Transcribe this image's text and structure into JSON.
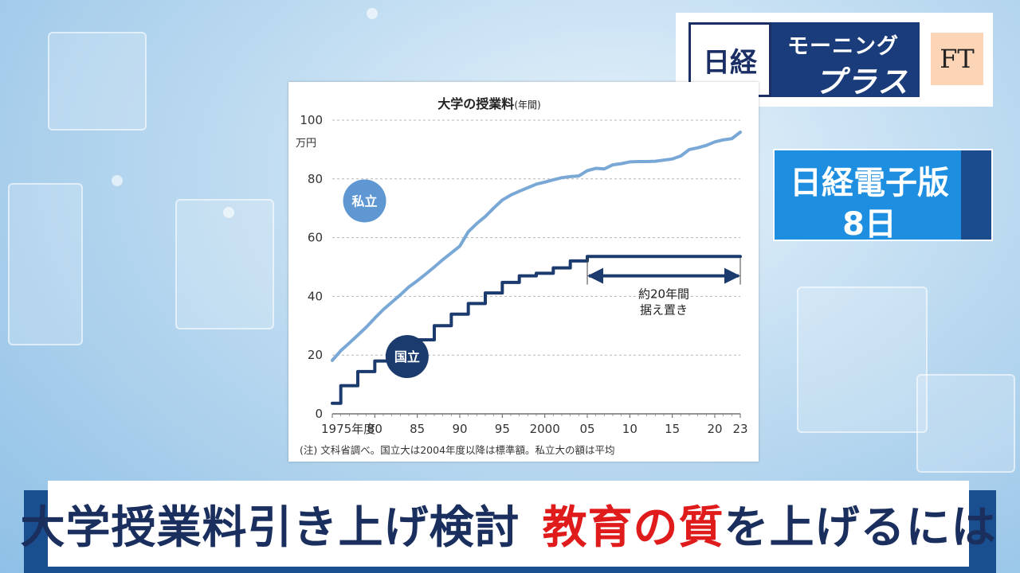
{
  "broadcast": {
    "logo_nikkei": "日経",
    "logo_morning_line1": "モーニング",
    "logo_morning_line2": "プラス",
    "logo_ft": "FT",
    "side_line1": "日経電子版",
    "side_line2": "8日",
    "headline_main": "大学授業料引き上げ検討",
    "headline_accent": "教育の質",
    "headline_rest": "を上げるには",
    "colors": {
      "accent_red": "#e01b1b",
      "navy": "#1a2f5e",
      "blue": "#1e8fe0"
    }
  },
  "chart_data": {
    "type": "line",
    "title": "大学の授業料",
    "title_suffix": "(年間)",
    "ylabel": "万円",
    "ylim": [
      0,
      100
    ],
    "yticks": [
      0,
      20,
      40,
      60,
      80,
      100
    ],
    "xlim": [
      1975,
      2023
    ],
    "xticks": [
      {
        "value": 1975,
        "label": "1975年度"
      },
      {
        "value": 1980,
        "label": "80"
      },
      {
        "value": 1985,
        "label": "85"
      },
      {
        "value": 1990,
        "label": "90"
      },
      {
        "value": 1995,
        "label": "95"
      },
      {
        "value": 2000,
        "label": "2000"
      },
      {
        "value": 2005,
        "label": "05"
      },
      {
        "value": 2010,
        "label": "10"
      },
      {
        "value": 2015,
        "label": "15"
      },
      {
        "value": 2020,
        "label": "20"
      },
      {
        "value": 2023,
        "label": "23"
      }
    ],
    "grid": true,
    "series": [
      {
        "name": "私立",
        "color": "#7aa8d6",
        "style": "smooth",
        "x": [
          1975,
          1976,
          1977,
          1978,
          1979,
          1980,
          1981,
          1982,
          1983,
          1984,
          1985,
          1986,
          1987,
          1988,
          1989,
          1990,
          1991,
          1992,
          1993,
          1994,
          1995,
          1996,
          1997,
          1998,
          1999,
          2000,
          2001,
          2002,
          2003,
          2004,
          2005,
          2006,
          2007,
          2008,
          2009,
          2010,
          2011,
          2012,
          2013,
          2014,
          2015,
          2016,
          2017,
          2018,
          2019,
          2020,
          2021,
          2022,
          2023
        ],
        "values": [
          18.2,
          21.5,
          24.1,
          26.8,
          29.5,
          32.6,
          35.5,
          38.0,
          40.5,
          43.2,
          45.3,
          47.6,
          50.0,
          52.5,
          54.8,
          57.1,
          62.0,
          64.8,
          67.2,
          70.1,
          72.8,
          74.5,
          75.8,
          77.0,
          78.2,
          78.9,
          79.7,
          80.4,
          80.8,
          81.0,
          82.8,
          83.6,
          83.4,
          84.8,
          85.2,
          85.8,
          85.9,
          85.9,
          86.0,
          86.4,
          86.8,
          87.8,
          90.0,
          90.6,
          91.4,
          92.6,
          93.3,
          93.7,
          95.9
        ]
      },
      {
        "name": "国立",
        "color": "#1b3a6e",
        "style": "step",
        "x": [
          1975,
          1976,
          1977,
          1978,
          1979,
          1980,
          1981,
          1982,
          1983,
          1984,
          1985,
          1986,
          1987,
          1988,
          1989,
          1990,
          1991,
          1992,
          1993,
          1994,
          1995,
          1996,
          1997,
          1998,
          1999,
          2000,
          2001,
          2002,
          2003,
          2004,
          2005,
          2006,
          2007,
          2008,
          2009,
          2010,
          2011,
          2012,
          2013,
          2014,
          2015,
          2016,
          2017,
          2018,
          2019,
          2020,
          2021,
          2022,
          2023
        ],
        "values": [
          3.6,
          9.6,
          9.6,
          14.4,
          14.4,
          18.0,
          18.0,
          21.6,
          21.6,
          25.2,
          25.2,
          25.2,
          30.0,
          30.0,
          33.96,
          33.96,
          37.56,
          37.56,
          41.16,
          41.16,
          44.76,
          44.76,
          46.98,
          46.98,
          47.88,
          47.88,
          49.68,
          49.68,
          52.08,
          52.08,
          53.58,
          53.58,
          53.58,
          53.58,
          53.58,
          53.58,
          53.58,
          53.58,
          53.58,
          53.58,
          53.58,
          53.58,
          53.58,
          53.58,
          53.58,
          53.58,
          53.58,
          53.58,
          53.58
        ]
      }
    ],
    "series_labels": [
      {
        "text": "私立",
        "x": 1978.8,
        "y": 72.5,
        "color": "#5f97d3"
      },
      {
        "text": "国立",
        "x": 1983.8,
        "y": 19.5,
        "color": "#1b3a6e"
      }
    ],
    "annotation": {
      "text_line1": "約20年間",
      "text_line2": "据え置き",
      "x_start": 2005,
      "x_end": 2023,
      "y": 47
    },
    "note": "(注) 文科省調べ。国立大は2004年度以降は標準額。私立大の額は平均"
  }
}
